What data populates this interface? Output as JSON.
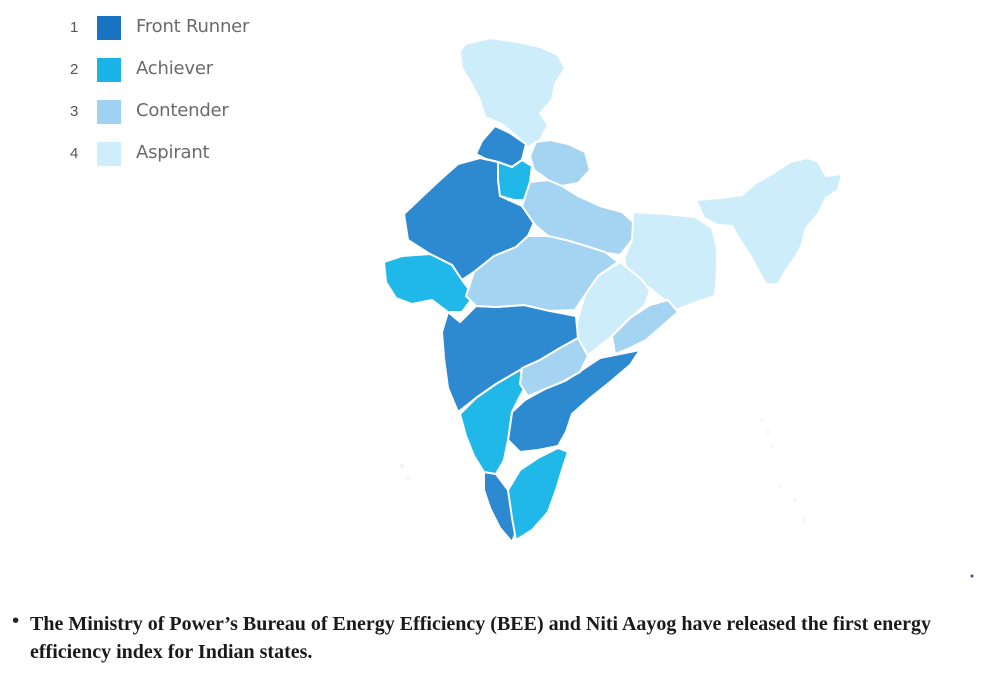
{
  "legend": {
    "items": [
      {
        "rank": "1",
        "label": "Front Runner",
        "color": "#1a73c2"
      },
      {
        "rank": "2",
        "label": "Achiever",
        "color": "#1ab4e8"
      },
      {
        "rank": "3",
        "label": "Contender",
        "color": "#9fd1f2"
      },
      {
        "rank": "4",
        "label": "Aspirant",
        "color": "#cdeefa"
      }
    ]
  },
  "map": {
    "category_colors": {
      "front_runner": "#2e8ad0",
      "achiever": "#1fb8e8",
      "contender": "#a5d3f2",
      "aspirant": "#cdedfa"
    },
    "border_color": "#ffffff"
  },
  "caption": {
    "bullet": "•",
    "text": "The Ministry of Power’s Bureau of Energy Efficiency (BEE) and Niti Aayog have released the first energy efficiency index for Indian states."
  }
}
